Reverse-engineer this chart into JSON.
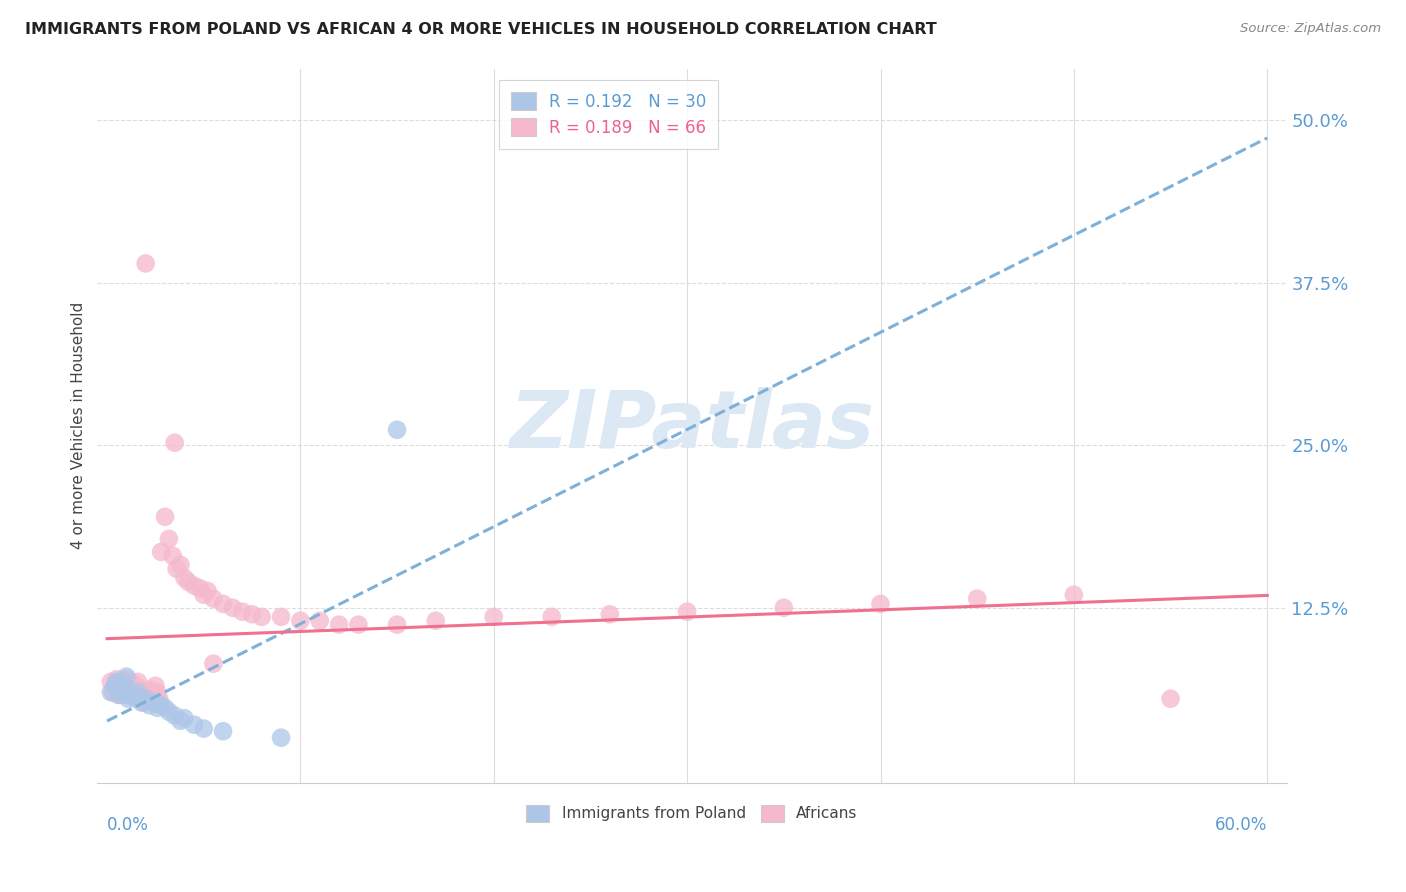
{
  "title": "IMMIGRANTS FROM POLAND VS AFRICAN 4 OR MORE VEHICLES IN HOUSEHOLD CORRELATION CHART",
  "source": "Source: ZipAtlas.com",
  "ylabel": "4 or more Vehicles in Household",
  "legend_poland": {
    "R": 0.192,
    "N": 30,
    "label": "Immigrants from Poland"
  },
  "legend_african": {
    "R": 0.189,
    "N": 66,
    "label": "Africans"
  },
  "color_poland": "#adc6e8",
  "color_african": "#f5b8cc",
  "trendline_poland_color": "#7fb0d8",
  "trendline_african_color": "#f07090",
  "background_color": "#ffffff",
  "poland_x": [
    0.002,
    0.004,
    0.005,
    0.006,
    0.007,
    0.008,
    0.009,
    0.01,
    0.01,
    0.011,
    0.012,
    0.013,
    0.015,
    0.016,
    0.018,
    0.02,
    0.022,
    0.024,
    0.026,
    0.028,
    0.03,
    0.032,
    0.035,
    0.038,
    0.04,
    0.045,
    0.05,
    0.06,
    0.09,
    0.15
  ],
  "poland_y": [
    0.06,
    0.065,
    0.068,
    0.058,
    0.062,
    0.06,
    0.065,
    0.058,
    0.072,
    0.055,
    0.06,
    0.058,
    0.055,
    0.06,
    0.052,
    0.055,
    0.05,
    0.052,
    0.048,
    0.05,
    0.048,
    0.045,
    0.042,
    0.038,
    0.04,
    0.035,
    0.032,
    0.03,
    0.025,
    0.262
  ],
  "african_x": [
    0.002,
    0.003,
    0.004,
    0.005,
    0.006,
    0.006,
    0.007,
    0.008,
    0.008,
    0.009,
    0.01,
    0.01,
    0.011,
    0.012,
    0.013,
    0.014,
    0.015,
    0.016,
    0.017,
    0.018,
    0.019,
    0.02,
    0.021,
    0.022,
    0.023,
    0.024,
    0.025,
    0.026,
    0.027,
    0.028,
    0.03,
    0.032,
    0.034,
    0.036,
    0.038,
    0.04,
    0.042,
    0.045,
    0.048,
    0.05,
    0.052,
    0.055,
    0.06,
    0.065,
    0.07,
    0.075,
    0.08,
    0.09,
    0.1,
    0.11,
    0.12,
    0.13,
    0.15,
    0.17,
    0.2,
    0.23,
    0.26,
    0.3,
    0.35,
    0.4,
    0.45,
    0.5,
    0.55,
    0.02,
    0.035,
    0.055
  ],
  "african_y": [
    0.068,
    0.06,
    0.065,
    0.07,
    0.058,
    0.065,
    0.062,
    0.068,
    0.06,
    0.065,
    0.07,
    0.058,
    0.065,
    0.068,
    0.06,
    0.062,
    0.065,
    0.068,
    0.055,
    0.06,
    0.052,
    0.058,
    0.055,
    0.062,
    0.06,
    0.058,
    0.065,
    0.06,
    0.055,
    0.168,
    0.195,
    0.178,
    0.165,
    0.155,
    0.158,
    0.148,
    0.145,
    0.142,
    0.14,
    0.135,
    0.138,
    0.132,
    0.128,
    0.125,
    0.122,
    0.12,
    0.118,
    0.118,
    0.115,
    0.115,
    0.112,
    0.112,
    0.112,
    0.115,
    0.118,
    0.118,
    0.12,
    0.122,
    0.125,
    0.128,
    0.132,
    0.135,
    0.055,
    0.39,
    0.252,
    0.082
  ],
  "xmin": 0.0,
  "xmax": 0.6,
  "ymin": -0.01,
  "ymax": 0.54,
  "yticks": [
    0.0,
    0.125,
    0.25,
    0.375,
    0.5
  ],
  "ytick_labels": [
    "",
    "12.5%",
    "25.0%",
    "37.5%",
    "50.0%"
  ],
  "watermark_text": "ZIPatlas",
  "watermark_color": "#dce8f4"
}
